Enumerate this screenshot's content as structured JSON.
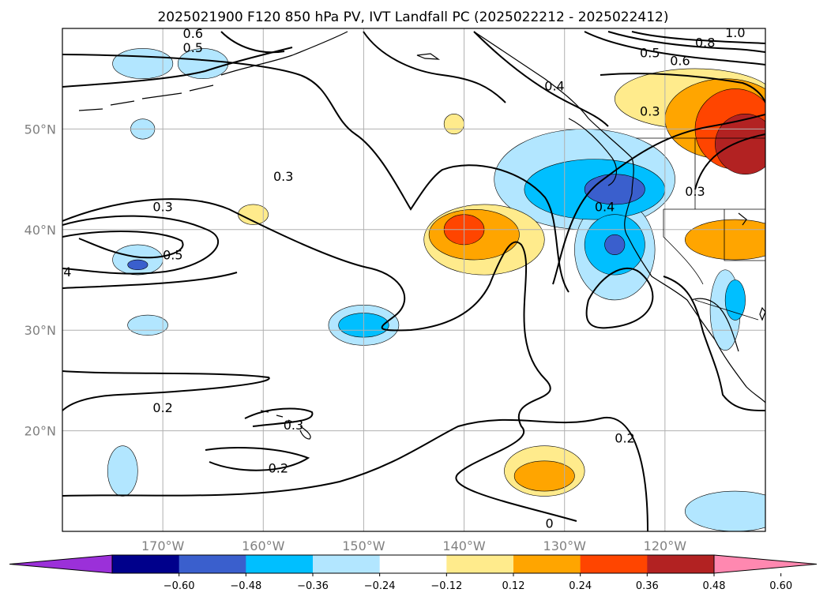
{
  "title": "2025021900 F120 850 hPa PV, IVT Landfall PC (2025022212 - 2025022412)",
  "map": {
    "lon_range": [
      -180,
      -110
    ],
    "lat_range": [
      10,
      60
    ],
    "lat_ticks": [
      {
        "value": 20,
        "label": "20°N"
      },
      {
        "value": 30,
        "label": "30°N"
      },
      {
        "value": 40,
        "label": "40°N"
      },
      {
        "value": 50,
        "label": "50°N"
      }
    ],
    "lon_ticks": [
      {
        "value": -170,
        "label": "170°W"
      },
      {
        "value": -160,
        "label": "160°W"
      },
      {
        "value": -150,
        "label": "150°W"
      },
      {
        "value": -140,
        "label": "140°W"
      },
      {
        "value": -130,
        "label": "130°W"
      },
      {
        "value": -120,
        "label": "120°W"
      }
    ],
    "grid": true,
    "coastline_color": "#000000"
  },
  "colorbar": {
    "extend": "both",
    "colors": [
      "#9b30d9",
      "#00008b",
      "#3a5fcd",
      "#00bfff",
      "#b2e6ff",
      "#ffffff",
      "#ffeb8c",
      "#ffa500",
      "#ff4500",
      "#b22222",
      "#ff88b0"
    ],
    "tick_labels": [
      "−0.60",
      "−0.48",
      "−0.36",
      "−0.24",
      "−0.12",
      "0.12",
      "0.24",
      "0.36",
      "0.48",
      "0.60"
    ]
  },
  "shading": [
    {
      "level": -0.48,
      "lon": -125,
      "lat": 44,
      "rx": 3,
      "ry": 1.5
    },
    {
      "level": -0.36,
      "lon": -127,
      "lat": 44,
      "rx": 7,
      "ry": 3
    },
    {
      "level": -0.24,
      "lon": -128,
      "lat": 45,
      "rx": 9,
      "ry": 5
    },
    {
      "level": -0.48,
      "lon": -125,
      "lat": 38.5,
      "rx": 1,
      "ry": 1
    },
    {
      "level": -0.36,
      "lon": -125,
      "lat": 38.5,
      "rx": 3,
      "ry": 3
    },
    {
      "level": -0.24,
      "lon": -125,
      "lat": 38,
      "rx": 4,
      "ry": 5
    },
    {
      "level": 0.48,
      "lon": -140,
      "lat": 40,
      "rx": 2,
      "ry": 1.5
    },
    {
      "level": 0.36,
      "lon": -139,
      "lat": 39.5,
      "rx": 4.5,
      "ry": 2.5
    },
    {
      "level": 0.24,
      "lon": -138,
      "lat": 39,
      "rx": 6,
      "ry": 3.5
    },
    {
      "level": 0.36,
      "lon": -132,
      "lat": 15.5,
      "rx": 3,
      "ry": 1.5
    },
    {
      "level": 0.24,
      "lon": -132,
      "lat": 16,
      "rx": 4,
      "ry": 2.5
    },
    {
      "level": -0.36,
      "lon": -150,
      "lat": 30.5,
      "rx": 2.5,
      "ry": 1.2
    },
    {
      "level": -0.24,
      "lon": -150,
      "lat": 30.5,
      "rx": 3.5,
      "ry": 2
    },
    {
      "level": -0.48,
      "lon": -172.5,
      "lat": 36.5,
      "rx": 1,
      "ry": 0.5
    },
    {
      "level": -0.24,
      "lon": -172.5,
      "lat": 37,
      "rx": 2.5,
      "ry": 1.5
    },
    {
      "level": -0.24,
      "lon": -171.5,
      "lat": 30.5,
      "rx": 2,
      "ry": 1
    },
    {
      "level": -0.24,
      "lon": -172,
      "lat": 56.5,
      "rx": 3,
      "ry": 1.5
    },
    {
      "level": -0.24,
      "lon": -166,
      "lat": 56.5,
      "rx": 2.5,
      "ry": 1.5
    },
    {
      "level": -0.24,
      "lon": -172,
      "lat": 50,
      "rx": 1.2,
      "ry": 1
    },
    {
      "level": 0.24,
      "lon": -161,
      "lat": 41.5,
      "rx": 1.5,
      "ry": 1
    },
    {
      "level": 0.24,
      "lon": -141,
      "lat": 50.5,
      "rx": 1,
      "ry": 1
    },
    {
      "level": -0.24,
      "lon": -174,
      "lat": 16,
      "rx": 1.5,
      "ry": 2.5
    },
    {
      "level": -0.24,
      "lon": -114,
      "lat": 32,
      "rx": 1.5,
      "ry": 4
    },
    {
      "level": -0.36,
      "lon": -113,
      "lat": 33,
      "rx": 1,
      "ry": 2
    },
    {
      "level": 0.24,
      "lon": -117,
      "lat": 53,
      "rx": 8,
      "ry": 3
    },
    {
      "level": 0.36,
      "lon": -114,
      "lat": 51,
      "rx": 6,
      "ry": 4
    },
    {
      "level": 0.48,
      "lon": -113,
      "lat": 50,
      "rx": 4,
      "ry": 4
    },
    {
      "level": 0.6,
      "lon": -112,
      "lat": 48.5,
      "rx": 3,
      "ry": 3
    },
    {
      "level": 0.36,
      "lon": -113,
      "lat": 39,
      "rx": 5,
      "ry": 2
    },
    {
      "level": -0.24,
      "lon": -113,
      "lat": 12,
      "rx": 5,
      "ry": 2
    }
  ],
  "contour_labels": [
    {
      "lon": -167,
      "lat": 59.2,
      "text": "0.6"
    },
    {
      "lon": -167,
      "lat": 57.8,
      "text": "0.5"
    },
    {
      "lon": -158,
      "lat": 45,
      "text": "0.3"
    },
    {
      "lon": -170,
      "lat": 42,
      "text": "0.3"
    },
    {
      "lon": -169,
      "lat": 37.2,
      "text": "0.5"
    },
    {
      "lon": -179.5,
      "lat": 35.5,
      "text": "4"
    },
    {
      "lon": -170,
      "lat": 22,
      "text": "0.2"
    },
    {
      "lon": -157,
      "lat": 20.3,
      "text": "0.3"
    },
    {
      "lon": -158.5,
      "lat": 16,
      "text": "0.2"
    },
    {
      "lon": -131,
      "lat": 54,
      "text": "0.4"
    },
    {
      "lon": -126,
      "lat": 42,
      "text": "0.4"
    },
    {
      "lon": -121.5,
      "lat": 51.5,
      "text": "0.3"
    },
    {
      "lon": -117,
      "lat": 43.5,
      "text": "0.3"
    },
    {
      "lon": -124,
      "lat": 19,
      "text": "0.2"
    },
    {
      "lon": -118.5,
      "lat": 56.5,
      "text": "0.6"
    },
    {
      "lon": -121.5,
      "lat": 57.3,
      "text": "0.5"
    },
    {
      "lon": -116,
      "lat": 58.3,
      "text": "0.8"
    },
    {
      "lon": -113,
      "lat": 59.3,
      "text": "1.0"
    },
    {
      "lon": -131.5,
      "lat": 10.5,
      "text": "0"
    }
  ]
}
